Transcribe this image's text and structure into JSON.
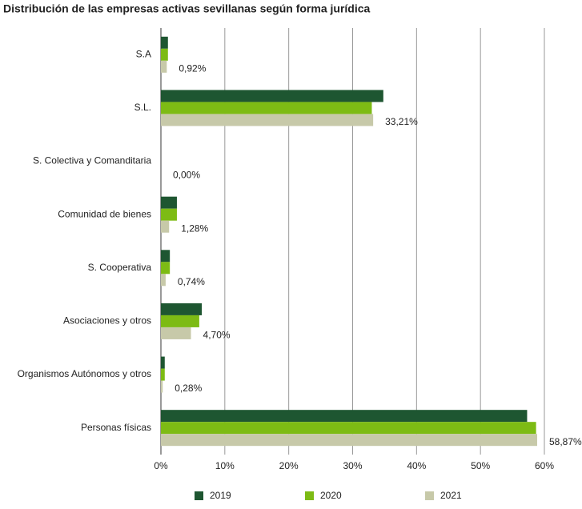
{
  "chart_data": {
    "type": "hbar",
    "title": "Distribución de las empresas activas sevillanas según forma jurídica",
    "categories": [
      "S.A",
      "S.L.",
      "S. Colectiva y Comanditaria",
      "Comunidad de bienes",
      "S. Cooperativa",
      "Asociaciones y otros",
      "Organismos Autónomos y otros",
      "Personas físicas"
    ],
    "series": [
      {
        "name": "2019",
        "color": "#1e5631",
        "values": [
          1.1,
          34.8,
          0,
          2.5,
          1.4,
          6.4,
          0.6,
          57.3
        ]
      },
      {
        "name": "2020",
        "color": "#7dbb14",
        "values": [
          1.1,
          33.0,
          0,
          2.5,
          1.4,
          6.0,
          0.6,
          58.7
        ]
      },
      {
        "name": "2021",
        "color": "#c7c9a9",
        "values": [
          0.92,
          33.21,
          0,
          1.28,
          0.74,
          4.7,
          0.28,
          58.87
        ],
        "value_labels": [
          "0,92%",
          "33,21%",
          "0,00%",
          "1,28%",
          "0,74%",
          "4,70%",
          "0,28%",
          "58,87%"
        ]
      }
    ],
    "xlim": [
      0,
      60
    ],
    "xticks": [
      {
        "value": 0,
        "label": "0%"
      },
      {
        "value": 10,
        "label": "10%"
      },
      {
        "value": 20,
        "label": "20%"
      },
      {
        "value": 30,
        "label": "30%"
      },
      {
        "value": 40,
        "label": "40%"
      },
      {
        "value": 50,
        "label": "50%"
      },
      {
        "value": 60,
        "label": "60%"
      }
    ],
    "grid": true,
    "legend": "bottom"
  }
}
